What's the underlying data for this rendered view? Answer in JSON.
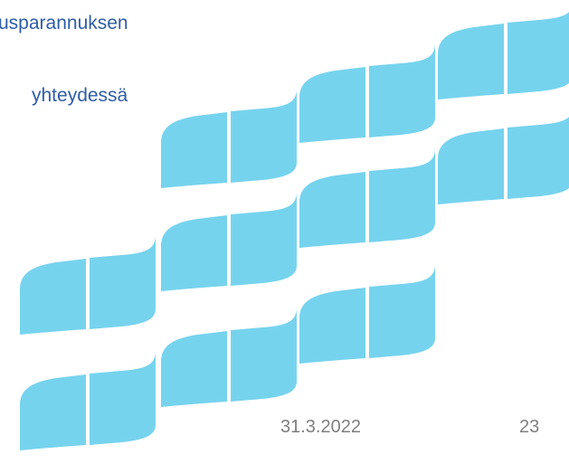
{
  "slide": {
    "heading_lines": [
      "usparannuksen",
      "yhteydessä"
    ],
    "footer": {
      "date": "31.3.2022",
      "page_number": "23"
    }
  }
}
